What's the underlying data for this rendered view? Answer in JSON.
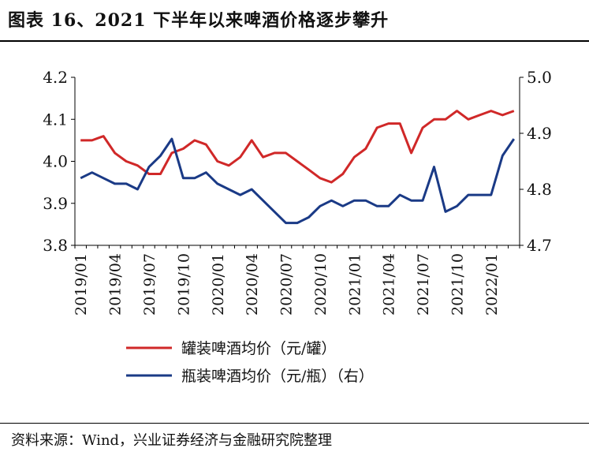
{
  "title": "图表 16、2021 下半年以来啤酒价格逐步攀升",
  "source": "资料来源：Wind，兴业证券经济与金融研究院整理",
  "chart_data": {
    "type": "line",
    "colors": {
      "can": "#d02828",
      "bottle": "#1a3a86"
    },
    "x": [
      "2019/01",
      "2019/02",
      "2019/03",
      "2019/04",
      "2019/05",
      "2019/06",
      "2019/07",
      "2019/08",
      "2019/09",
      "2019/10",
      "2019/11",
      "2019/12",
      "2020/01",
      "2020/02",
      "2020/03",
      "2020/04",
      "2020/05",
      "2020/06",
      "2020/07",
      "2020/08",
      "2020/09",
      "2020/10",
      "2020/11",
      "2020/12",
      "2021/01",
      "2021/02",
      "2021/03",
      "2021/04",
      "2021/05",
      "2021/06",
      "2021/07",
      "2021/08",
      "2021/09",
      "2021/10",
      "2021/11",
      "2021/12",
      "2022/01",
      "2022/02",
      "2022/03"
    ],
    "x_tick_labels": [
      "2019/01",
      "2019/04",
      "2019/07",
      "2019/10",
      "2020/01",
      "2020/04",
      "2020/07",
      "2020/10",
      "2021/01",
      "2021/04",
      "2021/07",
      "2021/10",
      "2022/01"
    ],
    "y_left": {
      "ticks": [
        "3.8",
        "3.9",
        "4.0",
        "4.1",
        "4.2"
      ],
      "lim": [
        3.8,
        4.2
      ]
    },
    "y_right": {
      "ticks": [
        "4.7",
        "4.8",
        "4.9",
        "5.0"
      ],
      "lim": [
        4.7,
        5.0
      ]
    },
    "series": [
      {
        "name": "罐装啤酒均价（元/罐）",
        "axis": "left",
        "values": [
          4.05,
          4.05,
          4.06,
          4.02,
          4.0,
          3.99,
          3.97,
          3.97,
          4.02,
          4.03,
          4.05,
          4.04,
          4.0,
          3.99,
          4.01,
          4.05,
          4.01,
          4.02,
          4.02,
          4.0,
          3.98,
          3.96,
          3.95,
          3.97,
          4.01,
          4.03,
          4.08,
          4.09,
          4.09,
          4.02,
          4.08,
          4.1,
          4.1,
          4.12,
          4.1,
          4.11,
          4.12,
          4.11,
          4.12
        ]
      },
      {
        "name": "瓶装啤酒均价（元/瓶）（右）",
        "axis": "right",
        "values": [
          4.82,
          4.83,
          4.82,
          4.81,
          4.81,
          4.8,
          4.84,
          4.86,
          4.89,
          4.82,
          4.82,
          4.83,
          4.81,
          4.8,
          4.79,
          4.8,
          4.78,
          4.76,
          4.74,
          4.74,
          4.75,
          4.77,
          4.78,
          4.77,
          4.78,
          4.78,
          4.77,
          4.77,
          4.79,
          4.78,
          4.78,
          4.84,
          4.76,
          4.77,
          4.79,
          4.79,
          4.79,
          4.86,
          4.89
        ]
      }
    ]
  }
}
